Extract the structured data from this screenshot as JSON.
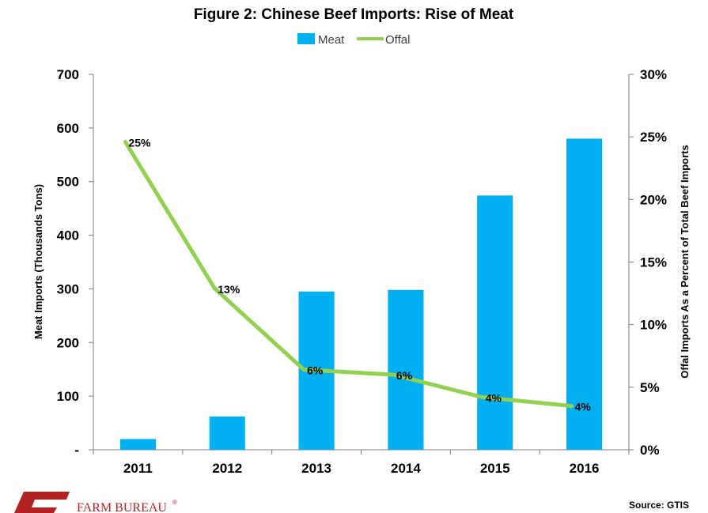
{
  "chart_data": {
    "type": "bar",
    "title": "Figure 2: Chinese Beef Imports: Rise of Meat",
    "categories": [
      "2011",
      "2012",
      "2013",
      "2014",
      "2015",
      "2016"
    ],
    "series": [
      {
        "name": "Meat",
        "type": "bar",
        "axis": "left",
        "color": "#00b0f0",
        "values": [
          20,
          62,
          295,
          298,
          474,
          580
        ]
      },
      {
        "name": "Offal",
        "type": "line",
        "axis": "right",
        "color": "#92d050",
        "values": [
          24.6,
          12.9,
          6.4,
          6.0,
          4.2,
          3.5
        ],
        "data_labels": [
          "25%",
          "13%",
          "6%",
          "6%",
          "4%",
          "4%"
        ]
      }
    ],
    "ylabel": "Meat Imports (Thousands Tons)",
    "ylim": [
      0,
      700
    ],
    "y_ticks": [
      "-",
      "100",
      "200",
      "300",
      "400",
      "500",
      "600",
      "700"
    ],
    "y2label": "Offal Imports As a Percent of Total Beef Imports",
    "y2lim": [
      0,
      30
    ],
    "y2_ticks": [
      "0%",
      "5%",
      "10%",
      "15%",
      "20%",
      "25%",
      "30%"
    ],
    "legend_position": "top-center",
    "grid": false
  },
  "source": "Source: GTIS",
  "brand": {
    "name": "FARM BUREAU",
    "mark": "®"
  }
}
